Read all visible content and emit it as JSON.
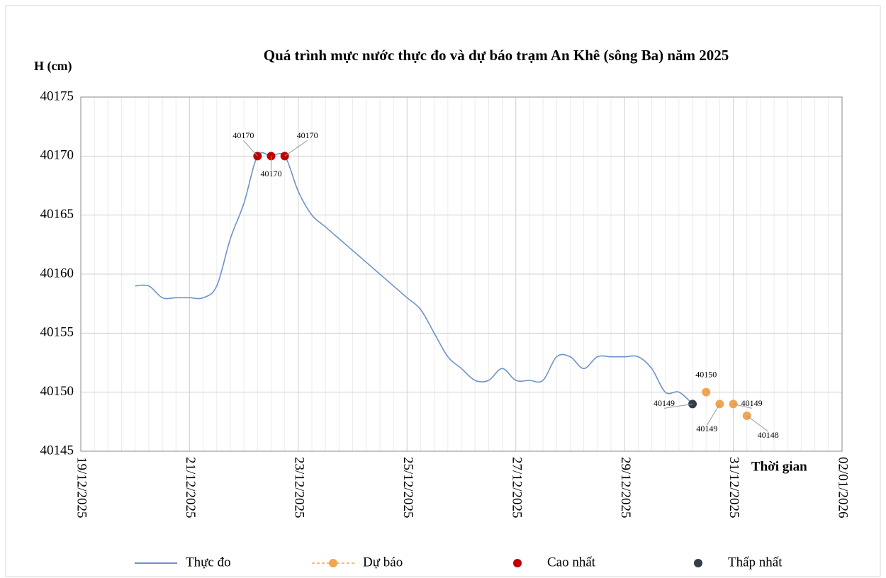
{
  "chart_data": {
    "type": "line",
    "title": "Quá trình mực nước thực đo và dự báo trạm An Khê (sông Ba) năm 2025",
    "y_label": "H  (cm)",
    "x_label": "Thời gian",
    "ylim": [
      40145,
      40175
    ],
    "yticks": [
      40145,
      40150,
      40155,
      40160,
      40165,
      40170,
      40175
    ],
    "xlim": [
      "2025-12-19T00:00",
      "2026-01-02T00:00"
    ],
    "xticks": [
      {
        "value": "2025-12-19T00:00",
        "label": "19/12/2025"
      },
      {
        "value": "2025-12-21T00:00",
        "label": "21/12/2025"
      },
      {
        "value": "2025-12-23T00:00",
        "label": "23/12/2025"
      },
      {
        "value": "2025-12-25T00:00",
        "label": "25/12/2025"
      },
      {
        "value": "2025-12-27T00:00",
        "label": "27/12/2025"
      },
      {
        "value": "2025-12-29T00:00",
        "label": "29/12/2025"
      },
      {
        "value": "2025-12-31T00:00",
        "label": "31/12/2025"
      },
      {
        "value": "2026-01-02T00:00",
        "label": "02/01/2026"
      }
    ],
    "grid": true,
    "series": [
      {
        "name": "Thực đo",
        "color": "#6f92c8",
        "style": "line",
        "x": [
          "2025-12-20T00:00",
          "2025-12-20T06:00",
          "2025-12-20T12:00",
          "2025-12-20T18:00",
          "2025-12-21T00:00",
          "2025-12-21T06:00",
          "2025-12-21T12:00",
          "2025-12-21T18:00",
          "2025-12-22T00:00",
          "2025-12-22T06:00",
          "2025-12-22T12:00",
          "2025-12-22T18:00",
          "2025-12-23T00:00",
          "2025-12-23T06:00",
          "2025-12-23T12:00",
          "2025-12-23T18:00",
          "2025-12-24T00:00",
          "2025-12-24T06:00",
          "2025-12-24T12:00",
          "2025-12-24T18:00",
          "2025-12-25T00:00",
          "2025-12-25T06:00",
          "2025-12-25T12:00",
          "2025-12-25T18:00",
          "2025-12-26T00:00",
          "2025-12-26T06:00",
          "2025-12-26T12:00",
          "2025-12-26T18:00",
          "2025-12-27T00:00",
          "2025-12-27T06:00",
          "2025-12-27T12:00",
          "2025-12-27T18:00",
          "2025-12-28T00:00",
          "2025-12-28T06:00",
          "2025-12-28T12:00",
          "2025-12-28T18:00",
          "2025-12-29T00:00",
          "2025-12-29T06:00",
          "2025-12-29T12:00",
          "2025-12-29T18:00",
          "2025-12-30T00:00",
          "2025-12-30T06:00"
        ],
        "values": [
          40159,
          40159,
          40158,
          40158,
          40158,
          40158,
          40159,
          40163,
          40166,
          40170,
          40170,
          40170,
          40167,
          40165,
          40164,
          40163,
          40162,
          40161,
          40160,
          40159,
          40158,
          40157,
          40155,
          40153,
          40152,
          40151,
          40151,
          40152,
          40151,
          40151,
          40151,
          40153,
          40153,
          40152,
          40153,
          40153,
          40153,
          40153,
          40152,
          40150,
          40150,
          40149
        ]
      },
      {
        "name": "Dự báo",
        "color": "#f0a553",
        "style": "dashed-marker",
        "x": [
          "2025-12-30T12:00",
          "2025-12-30T18:00",
          "2025-12-31T00:00",
          "2025-12-31T06:00"
        ],
        "values": [
          40150,
          40149,
          40149,
          40148
        ]
      },
      {
        "name": "Cao nhất",
        "color": "#c00000",
        "style": "marker",
        "x": [
          "2025-12-22T06:00",
          "2025-12-22T12:00",
          "2025-12-22T18:00"
        ],
        "values": [
          40170,
          40170,
          40170
        ]
      },
      {
        "name": "Thấp nhất",
        "color": "#333c48",
        "style": "marker",
        "x": [
          "2025-12-30T06:00"
        ],
        "values": [
          40149
        ]
      }
    ]
  }
}
